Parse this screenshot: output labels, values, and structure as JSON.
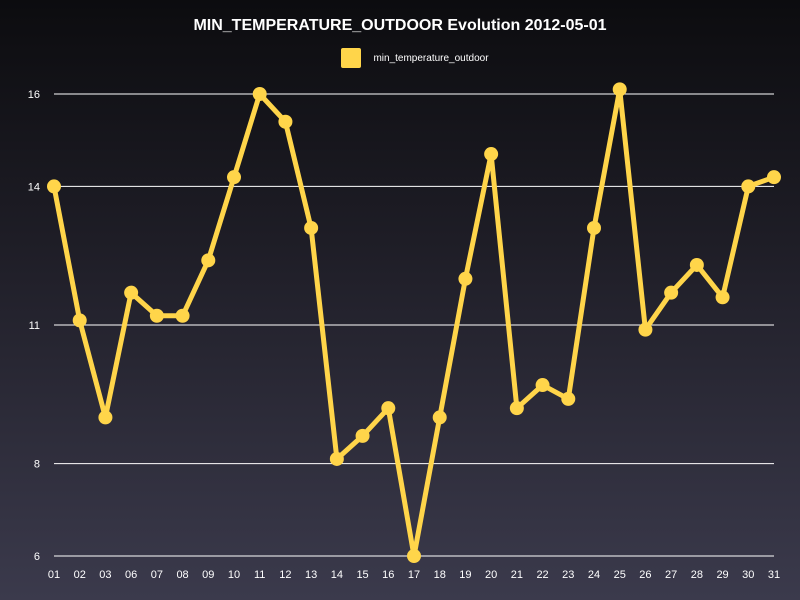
{
  "chart_data": {
    "type": "line",
    "title": "MIN_TEMPERATURE_OUTDOOR Evolution 2012-05-01",
    "xlabel": "",
    "ylabel": "",
    "categories": [
      "01",
      "02",
      "03",
      "06",
      "07",
      "08",
      "09",
      "10",
      "11",
      "12",
      "13",
      "14",
      "15",
      "16",
      "17",
      "18",
      "19",
      "20",
      "21",
      "22",
      "23",
      "24",
      "25",
      "26",
      "27",
      "28",
      "29",
      "30",
      "31"
    ],
    "series": [
      {
        "name": "min_temperature_outdoor",
        "color": "#ffd54a",
        "values": [
          14.0,
          11.1,
          9.0,
          11.7,
          11.2,
          11.2,
          12.4,
          14.2,
          16.0,
          15.4,
          13.1,
          8.1,
          8.6,
          9.2,
          6.0,
          9.0,
          12.0,
          14.7,
          9.2,
          9.7,
          9.4,
          13.1,
          16.1,
          10.9,
          11.7,
          12.3,
          11.6,
          14.0,
          14.2
        ]
      }
    ],
    "ylim": [
      6,
      16.3
    ],
    "yticks": [
      6,
      8,
      11,
      14,
      16
    ],
    "yticks_labels": [
      "6",
      "8",
      "11",
      "14",
      "16"
    ],
    "grid": true,
    "legend": "top-center"
  },
  "colors": {
    "gridline": "#ffffff",
    "series": "#ffd54a"
  }
}
